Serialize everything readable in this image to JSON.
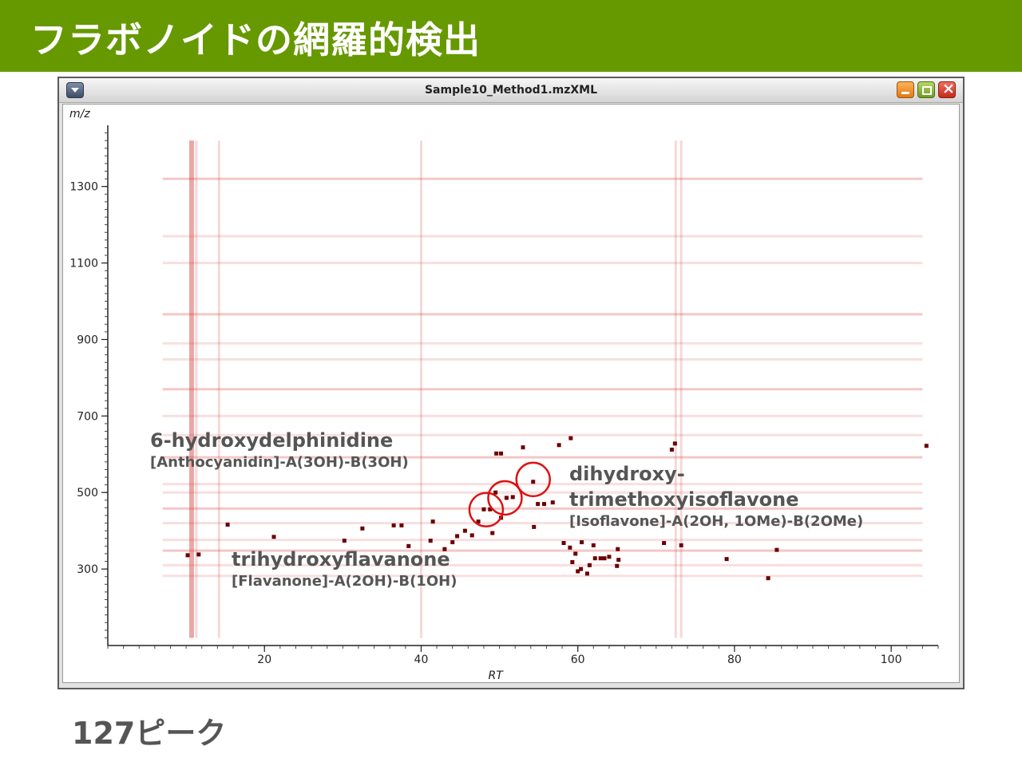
{
  "slide": {
    "title": "フラボノイドの網羅的検出",
    "peak_count_label": "127ピーク"
  },
  "window": {
    "title": "Sample10_Method1.mzXML"
  },
  "colors": {
    "banner": "#669900",
    "peak": "#6b0000",
    "streak": "#d43a3a",
    "circle": "#dd1111",
    "annotation_text": "#555555"
  },
  "chart_data": {
    "type": "heatmap",
    "title": "",
    "xlabel": "RT",
    "ylabel": "m/z",
    "xlim": [
      0,
      106
    ],
    "ylim": [
      100,
      1460
    ],
    "xticks": [
      20,
      40,
      60,
      80,
      100
    ],
    "yticks": [
      300,
      500,
      700,
      900,
      1100,
      1300
    ],
    "grid": false,
    "horizontal_streaks_mz": [
      1320,
      1170,
      1100,
      966,
      890,
      848,
      770,
      700,
      650,
      592,
      522,
      500,
      458,
      420,
      376,
      348,
      310,
      282
    ],
    "vertical_streaks_rt": [
      10.7,
      11.3,
      14.2,
      40.0,
      72.5,
      73.2
    ],
    "peaks": [
      {
        "rt": 10.2,
        "mz": 336
      },
      {
        "rt": 11.6,
        "mz": 338
      },
      {
        "rt": 15.3,
        "mz": 416
      },
      {
        "rt": 21.2,
        "mz": 384
      },
      {
        "rt": 30.2,
        "mz": 374
      },
      {
        "rt": 32.5,
        "mz": 406
      },
      {
        "rt": 36.5,
        "mz": 414
      },
      {
        "rt": 37.5,
        "mz": 414
      },
      {
        "rt": 38.4,
        "mz": 360
      },
      {
        "rt": 41.5,
        "mz": 424
      },
      {
        "rt": 41.2,
        "mz": 374
      },
      {
        "rt": 43.0,
        "mz": 352
      },
      {
        "rt": 44.0,
        "mz": 370
      },
      {
        "rt": 44.6,
        "mz": 386
      },
      {
        "rt": 45.6,
        "mz": 400
      },
      {
        "rt": 46.5,
        "mz": 388
      },
      {
        "rt": 47.3,
        "mz": 424
      },
      {
        "rt": 48.0,
        "mz": 456
      },
      {
        "rt": 48.8,
        "mz": 456
      },
      {
        "rt": 49.1,
        "mz": 394
      },
      {
        "rt": 49.5,
        "mz": 500
      },
      {
        "rt": 50.2,
        "mz": 434
      },
      {
        "rt": 50.9,
        "mz": 486
      },
      {
        "rt": 51.7,
        "mz": 488
      },
      {
        "rt": 49.6,
        "mz": 602
      },
      {
        "rt": 50.2,
        "mz": 602
      },
      {
        "rt": 53.0,
        "mz": 618
      },
      {
        "rt": 54.3,
        "mz": 528
      },
      {
        "rt": 54.4,
        "mz": 410
      },
      {
        "rt": 54.9,
        "mz": 470
      },
      {
        "rt": 55.7,
        "mz": 470
      },
      {
        "rt": 56.8,
        "mz": 474
      },
      {
        "rt": 57.6,
        "mz": 624
      },
      {
        "rt": 59.1,
        "mz": 642
      },
      {
        "rt": 58.2,
        "mz": 368
      },
      {
        "rt": 59.0,
        "mz": 356
      },
      {
        "rt": 59.3,
        "mz": 318
      },
      {
        "rt": 59.7,
        "mz": 340
      },
      {
        "rt": 60.4,
        "mz": 300
      },
      {
        "rt": 60.0,
        "mz": 294
      },
      {
        "rt": 61.2,
        "mz": 288
      },
      {
        "rt": 61.5,
        "mz": 310
      },
      {
        "rt": 62.2,
        "mz": 328
      },
      {
        "rt": 62.9,
        "mz": 328
      },
      {
        "rt": 63.4,
        "mz": 328
      },
      {
        "rt": 62.0,
        "mz": 362
      },
      {
        "rt": 60.5,
        "mz": 370
      },
      {
        "rt": 65.1,
        "mz": 352
      },
      {
        "rt": 64.0,
        "mz": 332
      },
      {
        "rt": 65.2,
        "mz": 324
      },
      {
        "rt": 65.0,
        "mz": 308
      },
      {
        "rt": 71.0,
        "mz": 368
      },
      {
        "rt": 73.2,
        "mz": 362
      },
      {
        "rt": 72.4,
        "mz": 628
      },
      {
        "rt": 72.0,
        "mz": 612
      },
      {
        "rt": 79.0,
        "mz": 326
      },
      {
        "rt": 84.3,
        "mz": 276
      },
      {
        "rt": 85.4,
        "mz": 350
      },
      {
        "rt": 104.5,
        "mz": 622
      }
    ],
    "annotations": [
      {
        "name": "6-hydroxydelphinidine",
        "formula": "[Anthocyanidin]-A(3OH)-B(3OH)",
        "rt": 11.4,
        "mz": 718
      },
      {
        "name": "trihydroxyflavanone",
        "formula": "[Flavanone]-A(2OH)-B(1OH)",
        "rt": 48.3,
        "mz": 456
      },
      {
        "name": "dihydroxy-",
        "name_line2": "trimethoxyisoflavone",
        "formula": "[Isoflavone]-A(2OH, 1OMe)-B(2OMe)",
        "rt": 54.3,
        "mz": 534
      }
    ],
    "circled_peaks": [
      {
        "rt": 48.3,
        "mz": 455
      },
      {
        "rt": 50.7,
        "mz": 486
      },
      {
        "rt": 54.3,
        "mz": 534
      }
    ]
  }
}
